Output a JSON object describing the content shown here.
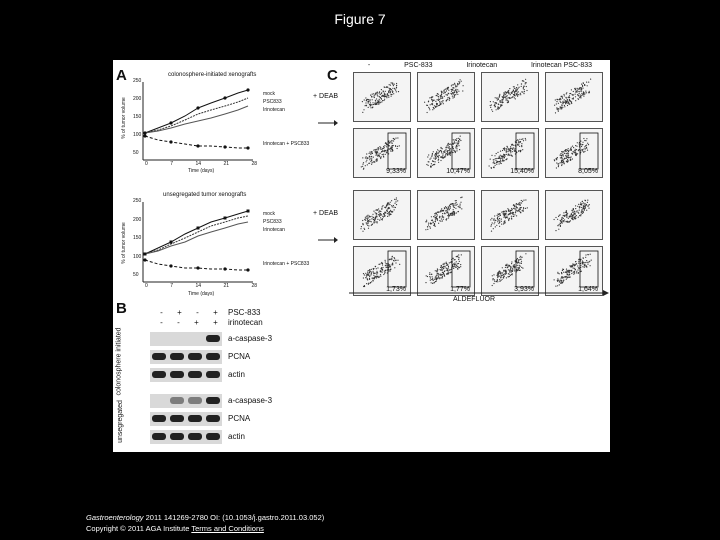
{
  "page_title": "Figure 7",
  "panels": {
    "a_label": "A",
    "b_label": "B",
    "c_label": "C"
  },
  "panel_a": {
    "top_chart": {
      "title": "colonosphere-initiated xenografts",
      "ylabel": "% of tumor volume",
      "xlabel": "Time (days)",
      "x_ticks": [
        "0",
        "7",
        "14",
        "21",
        "28"
      ],
      "y_ticks": [
        "50",
        "100",
        "150",
        "200",
        "250"
      ],
      "legend": [
        "mock",
        "PSC833",
        "Irinotecan",
        "Irinotecan + PSC833"
      ]
    },
    "bottom_chart": {
      "title": "unsegregated tumor xenografts",
      "ylabel": "% of tumor volume",
      "xlabel": "Time (days)",
      "x_ticks": [
        "0",
        "7",
        "14",
        "21",
        "28"
      ],
      "y_ticks": [
        "50",
        "100",
        "150",
        "200",
        "250"
      ],
      "legend": [
        "mock",
        "PSC833",
        "Irinotecan",
        "Irinotecan + PSC833"
      ]
    }
  },
  "panel_c": {
    "column_headers": [
      "-",
      "PSC-833",
      "Irinotecan",
      "Irinotecan PSC-833"
    ],
    "deab_label": "+ DEAB",
    "axis_label": "ALDEFLUOR",
    "top_percents": [
      "9,33%",
      "10,47%",
      "15,40%",
      "8,05%"
    ],
    "bottom_percents": [
      "1,73%",
      "1,77%",
      "3,93%",
      "1,64%"
    ]
  },
  "panel_b": {
    "psc_row": [
      "-",
      "+",
      "-",
      "+"
    ],
    "psc_label": "PSC-833",
    "irino_row": [
      "-",
      "-",
      "+",
      "+"
    ],
    "irino_label": "irinotecan",
    "group1_label": "colonosphere initiated",
    "group2_label": "unsegregated",
    "bands": [
      "a-caspase-3",
      "PCNA",
      "actin"
    ]
  },
  "caption": {
    "journal": "Gastroenterology",
    "citation": " 2011 141269-2780 OI: (10.1053/j.gastro.2011.03.052)",
    "copyright": "Copyright © 2011 AGA Institute",
    "terms_link": "Terms and Conditions"
  }
}
